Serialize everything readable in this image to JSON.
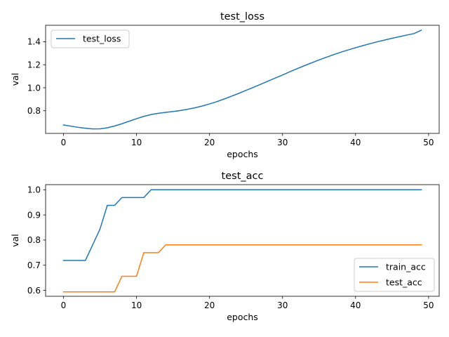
{
  "chart_data": [
    {
      "type": "line",
      "title": "test_loss",
      "xlabel": "epochs",
      "ylabel": "val",
      "xlim": [
        -2.45,
        51.45
      ],
      "ylim": [
        0.603,
        1.543
      ],
      "xticks": [
        0,
        10,
        20,
        30,
        40,
        50
      ],
      "yticks": [
        0.8,
        1.0,
        1.2,
        1.4
      ],
      "xtick_labels": [
        "0",
        "10",
        "20",
        "30",
        "40",
        "50"
      ],
      "ytick_labels": [
        "0.8",
        "1.0",
        "1.2",
        "1.4"
      ],
      "grid": false,
      "legend_position": "upper left",
      "x": [
        0,
        1,
        2,
        3,
        4,
        5,
        6,
        7,
        8,
        9,
        10,
        11,
        12,
        13,
        14,
        15,
        16,
        17,
        18,
        19,
        20,
        21,
        22,
        23,
        24,
        25,
        26,
        27,
        28,
        29,
        30,
        31,
        32,
        33,
        34,
        35,
        36,
        37,
        38,
        39,
        40,
        41,
        42,
        43,
        44,
        45,
        46,
        47,
        48,
        49
      ],
      "series": [
        {
          "name": "test_loss",
          "color": "#1f77b4",
          "values": [
            0.676,
            0.666,
            0.656,
            0.648,
            0.642,
            0.643,
            0.652,
            0.667,
            0.687,
            0.709,
            0.731,
            0.751,
            0.767,
            0.778,
            0.786,
            0.793,
            0.802,
            0.813,
            0.826,
            0.841,
            0.859,
            0.879,
            0.902,
            0.926,
            0.951,
            0.977,
            1.003,
            1.03,
            1.057,
            1.084,
            1.111,
            1.139,
            1.166,
            1.192,
            1.217,
            1.242,
            1.265,
            1.288,
            1.309,
            1.329,
            1.348,
            1.366,
            1.383,
            1.4,
            1.415,
            1.43,
            1.444,
            1.458,
            1.471,
            1.5
          ]
        }
      ]
    },
    {
      "type": "line",
      "title": "test_acc",
      "xlabel": "epochs",
      "ylabel": "val",
      "xlim": [
        -2.45,
        51.45
      ],
      "ylim": [
        0.5765,
        1.0203
      ],
      "xticks": [
        0,
        10,
        20,
        30,
        40,
        50
      ],
      "yticks": [
        0.6,
        0.7,
        0.8,
        0.9,
        1.0
      ],
      "xtick_labels": [
        "0",
        "10",
        "20",
        "30",
        "40",
        "50"
      ],
      "ytick_labels": [
        "0.6",
        "0.7",
        "0.8",
        "0.9",
        "1.0"
      ],
      "grid": false,
      "legend_position": "lower right",
      "x": [
        0,
        1,
        2,
        3,
        4,
        5,
        6,
        7,
        8,
        9,
        10,
        11,
        12,
        13,
        14,
        15,
        16,
        17,
        18,
        19,
        20,
        21,
        22,
        23,
        24,
        25,
        26,
        27,
        28,
        29,
        30,
        31,
        32,
        33,
        34,
        35,
        36,
        37,
        38,
        39,
        40,
        41,
        42,
        43,
        44,
        45,
        46,
        47,
        48,
        49
      ],
      "series": [
        {
          "name": "train_acc",
          "color": "#1f77b4",
          "values": [
            0.719,
            0.719,
            0.719,
            0.719,
            0.781,
            0.844,
            0.938,
            0.938,
            0.969,
            0.969,
            0.969,
            0.969,
            1.0,
            1.0,
            1.0,
            1.0,
            1.0,
            1.0,
            1.0,
            1.0,
            1.0,
            1.0,
            1.0,
            1.0,
            1.0,
            1.0,
            1.0,
            1.0,
            1.0,
            1.0,
            1.0,
            1.0,
            1.0,
            1.0,
            1.0,
            1.0,
            1.0,
            1.0,
            1.0,
            1.0,
            1.0,
            1.0,
            1.0,
            1.0,
            1.0,
            1.0,
            1.0,
            1.0,
            1.0,
            1.0
          ]
        },
        {
          "name": "test_acc",
          "color": "#ff7f0e",
          "values": [
            0.594,
            0.594,
            0.594,
            0.594,
            0.594,
            0.594,
            0.594,
            0.594,
            0.656,
            0.656,
            0.656,
            0.75,
            0.75,
            0.75,
            0.781,
            0.781,
            0.781,
            0.781,
            0.781,
            0.781,
            0.781,
            0.781,
            0.781,
            0.781,
            0.781,
            0.781,
            0.781,
            0.781,
            0.781,
            0.781,
            0.781,
            0.781,
            0.781,
            0.781,
            0.781,
            0.781,
            0.781,
            0.781,
            0.781,
            0.781,
            0.781,
            0.781,
            0.781,
            0.781,
            0.781,
            0.781,
            0.781,
            0.781,
            0.781,
            0.781
          ]
        }
      ]
    }
  ]
}
